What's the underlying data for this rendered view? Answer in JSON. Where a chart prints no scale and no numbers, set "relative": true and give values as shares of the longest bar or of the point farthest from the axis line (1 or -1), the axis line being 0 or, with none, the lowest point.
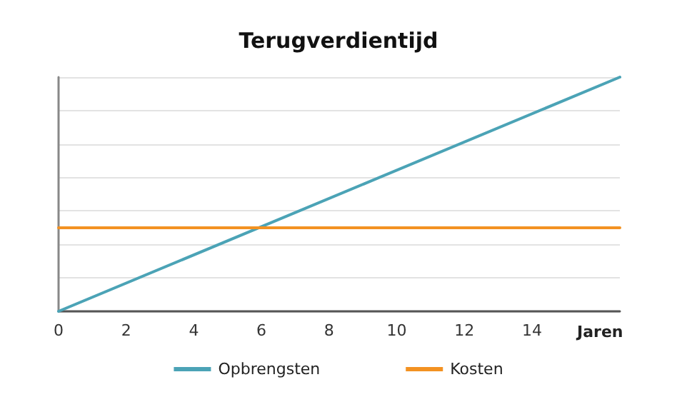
{
  "chart_data": {
    "type": "line",
    "title": "Terugverdientijd",
    "xlabel": "Jaren",
    "relative": true,
    "xlim": [
      0,
      16.6
    ],
    "xticks": [
      0,
      2,
      4,
      6,
      8,
      10,
      12,
      14
    ],
    "x": [
      0,
      16.6
    ],
    "series": [
      {
        "name": "Opbrengsten",
        "color": "#4ba3b6",
        "values": [
          0,
          1
        ]
      },
      {
        "name": "Kosten",
        "color": "#f39222",
        "values": [
          0.357,
          0.357
        ]
      }
    ],
    "grid": "y",
    "legend": "bottom",
    "marker": "none",
    "line_style": "solid"
  }
}
